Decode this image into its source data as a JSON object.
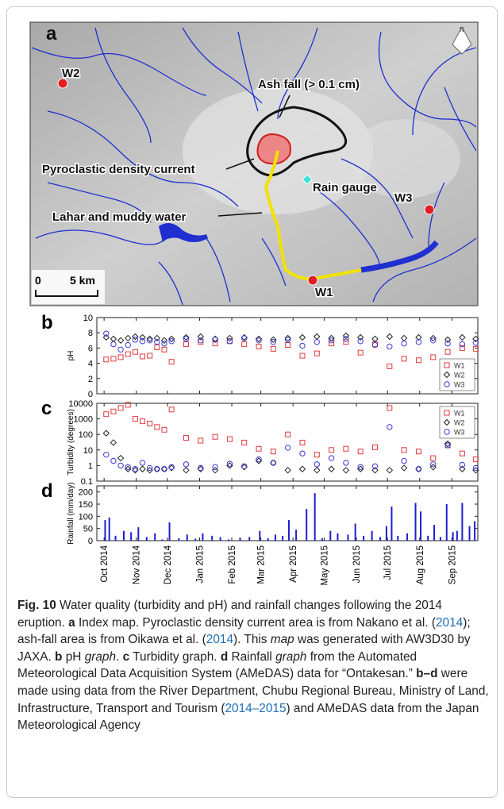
{
  "map": {
    "panel": "a",
    "north": "N",
    "labels": {
      "w2": "W2",
      "ash": "Ash fall (> 0.1 cm)",
      "pdc": "Pyroclastic density current",
      "gauge": "Rain gauge",
      "w3": "W3",
      "lahar": "Lahar and muddy water",
      "w1": "W1"
    },
    "scale": {
      "start": "0",
      "end": "5 km"
    }
  },
  "chart_data": [
    {
      "type": "scatter",
      "panel": "b",
      "ylabel": "pH",
      "ylim": [
        0,
        10
      ],
      "yticks": [
        0,
        2,
        4,
        6,
        8,
        10
      ],
      "xlim": [
        -7,
        360
      ],
      "legend": "lower right",
      "x": [
        2,
        9,
        16,
        23,
        30,
        37,
        44,
        51,
        58,
        65,
        79,
        93,
        107,
        121,
        135,
        149,
        163,
        177,
        191,
        205,
        219,
        233,
        247,
        261,
        275,
        289,
        303,
        317,
        331,
        345,
        358
      ],
      "series": [
        {
          "name": "W1",
          "color": "#e0393e",
          "marker": "square",
          "values": [
            4.5,
            4.6,
            4.8,
            5.2,
            5.5,
            4.9,
            5.0,
            6.1,
            5.8,
            4.2,
            6.5,
            6.8,
            6.6,
            6.9,
            6.5,
            6.2,
            5.9,
            6.4,
            5.0,
            5.3,
            6.6,
            6.8,
            5.4,
            6.5,
            3.6,
            4.6,
            4.4,
            4.8,
            5.5,
            6.0,
            5.9
          ]
        },
        {
          "name": "W2",
          "color": "#222222",
          "marker": "diamond",
          "values": [
            7.4,
            7.2,
            7.0,
            7.3,
            7.5,
            7.4,
            7.2,
            7.3,
            7.0,
            7.2,
            7.4,
            7.5,
            7.2,
            7.3,
            7.4,
            7.2,
            7.1,
            7.3,
            7.4,
            7.5,
            7.3,
            7.6,
            7.4,
            7.2,
            7.5,
            7.3,
            7.4,
            7.3,
            7.1,
            7.4,
            7.2
          ]
        },
        {
          "name": "W3",
          "color": "#3a3ad6",
          "marker": "circle",
          "values": [
            7.9,
            6.5,
            5.8,
            6.4,
            7.1,
            6.9,
            7.0,
            6.8,
            6.6,
            6.9,
            7.2,
            7.0,
            7.1,
            6.9,
            7.3,
            7.0,
            6.8,
            7.1,
            6.3,
            6.8,
            7.0,
            7.2,
            6.9,
            6.4,
            6.2,
            6.6,
            6.8,
            7.0,
            6.6,
            6.5,
            6.7
          ]
        }
      ]
    },
    {
      "type": "scatter",
      "panel": "c",
      "ylabel": "Turbidity (degrees)",
      "log": true,
      "ylim": [
        0.1,
        10000
      ],
      "yticks": [
        0.1,
        1,
        10,
        100,
        1000,
        10000
      ],
      "xlim": [
        -7,
        360
      ],
      "legend": "upper right",
      "x": [
        2,
        9,
        16,
        23,
        30,
        37,
        44,
        51,
        58,
        65,
        79,
        93,
        107,
        121,
        135,
        149,
        163,
        177,
        191,
        205,
        219,
        233,
        247,
        261,
        275,
        289,
        303,
        317,
        331,
        345,
        358
      ],
      "series": [
        {
          "name": "W1",
          "color": "#e0393e",
          "marker": "square",
          "values": [
            2000,
            3000,
            5000,
            8000,
            1000,
            700,
            500,
            300,
            200,
            4000,
            60,
            40,
            70,
            50,
            30,
            12,
            8,
            100,
            30,
            5,
            10,
            12,
            8,
            15,
            5000,
            10,
            8,
            3,
            20,
            6,
            2.5
          ]
        },
        {
          "name": "W2",
          "color": "#222222",
          "marker": "diamond",
          "values": [
            120,
            30,
            3,
            0.6,
            0.5,
            0.6,
            0.5,
            0.6,
            0.6,
            0.7,
            0.5,
            0.6,
            0.5,
            1,
            0.8,
            2,
            1.5,
            0.5,
            0.6,
            0.5,
            0.6,
            0.5,
            0.6,
            0.5,
            0.5,
            0.7,
            0.6,
            0.8,
            25,
            0.6,
            0.5
          ]
        },
        {
          "name": "W3",
          "color": "#3a3ad6",
          "marker": "circle",
          "values": [
            5,
            2,
            1,
            0.8,
            0.6,
            1.5,
            0.7,
            0.6,
            0.6,
            0.8,
            1.2,
            0.7,
            0.8,
            1.3,
            0.9,
            2.5,
            1.5,
            14,
            6,
            1.2,
            3,
            1.5,
            0.8,
            0.9,
            300,
            2,
            0.6,
            1.2,
            20,
            1.1,
            0.7
          ]
        }
      ]
    },
    {
      "type": "bar",
      "panel": "d",
      "ylabel": "Rainfall (mm/day)",
      "ylim": [
        0,
        225
      ],
      "yticks": [
        0,
        50,
        100,
        150,
        200
      ],
      "xlim": [
        -7,
        360
      ],
      "color": "#1f1fd0",
      "xticks": [
        {
          "value": 0,
          "label": "Oct 2014"
        },
        {
          "value": 31,
          "label": "Nov 2014"
        },
        {
          "value": 61,
          "label": "Dec 2014"
        },
        {
          "value": 92,
          "label": "Jan 2015"
        },
        {
          "value": 123,
          "label": "Feb 2015"
        },
        {
          "value": 151,
          "label": "Mar 2015"
        },
        {
          "value": 182,
          "label": "Apr 2015"
        },
        {
          "value": 212,
          "label": "May 2015"
        },
        {
          "value": 243,
          "label": "Jun 2015"
        },
        {
          "value": 273,
          "label": "Jul 2015"
        },
        {
          "value": 304,
          "label": "Aug 2015"
        },
        {
          "value": 335,
          "label": "Sep 2015"
        }
      ],
      "x": [
        1,
        5,
        11,
        19,
        26,
        33,
        41,
        49,
        56,
        63,
        72,
        80,
        88,
        95,
        104,
        112,
        120,
        131,
        140,
        150,
        158,
        165,
        172,
        178,
        185,
        195,
        203,
        210,
        218,
        225,
        235,
        242,
        250,
        258,
        266,
        272,
        277,
        283,
        292,
        300,
        305,
        312,
        318,
        324,
        330,
        336,
        340,
        345,
        352,
        357
      ],
      "values": [
        85,
        95,
        20,
        40,
        35,
        55,
        15,
        30,
        5,
        75,
        10,
        25,
        8,
        30,
        20,
        15,
        5,
        12,
        15,
        40,
        10,
        25,
        20,
        85,
        45,
        130,
        195,
        10,
        40,
        30,
        25,
        70,
        20,
        40,
        15,
        60,
        140,
        20,
        30,
        155,
        120,
        20,
        65,
        15,
        150,
        35,
        40,
        155,
        60,
        80
      ]
    }
  ],
  "caption": {
    "runs": [
      {
        "text": "Fig. 10",
        "style": "bold"
      },
      {
        "text": "  Water quality (turbidity and pH) and rainfall changes following the 2014 eruption. ",
        "style": "plain"
      },
      {
        "text": "a",
        "style": "bold"
      },
      {
        "text": " Index map. Pyroclastic density current area is from Nakano et al. (",
        "style": "plain"
      },
      {
        "text": "2014",
        "style": "link"
      },
      {
        "text": "); ash-fall area is from Oikawa et al. (",
        "style": "plain"
      },
      {
        "text": "2014",
        "style": "link"
      },
      {
        "text": "). This ",
        "style": "plain"
      },
      {
        "text": "map",
        "style": "italic"
      },
      {
        "text": " was generated with AW3D30 by JAXA. ",
        "style": "plain"
      },
      {
        "text": "b",
        "style": "bold"
      },
      {
        "text": " pH ",
        "style": "plain"
      },
      {
        "text": "graph",
        "style": "italic"
      },
      {
        "text": ". ",
        "style": "plain"
      },
      {
        "text": "c",
        "style": "bold"
      },
      {
        "text": " Turbidity graph. ",
        "style": "plain"
      },
      {
        "text": "d",
        "style": "bold"
      },
      {
        "text": " Rainfall ",
        "style": "plain"
      },
      {
        "text": "graph",
        "style": "italic"
      },
      {
        "text": " from the Automated Meteorological Data Acquisition System (AMeDAS) data for “Ontakesan.” ",
        "style": "plain"
      },
      {
        "text": "b–d",
        "style": "bold"
      },
      {
        "text": " were made using data from the River Department, Chubu Regional Bureau, Ministry of Land, Infrastructure, Transport and Tourism (",
        "style": "plain"
      },
      {
        "text": "2014–2015",
        "style": "link"
      },
      {
        "text": ") and AMeDAS data from the Japan Meteorological Agency",
        "style": "plain"
      }
    ]
  }
}
